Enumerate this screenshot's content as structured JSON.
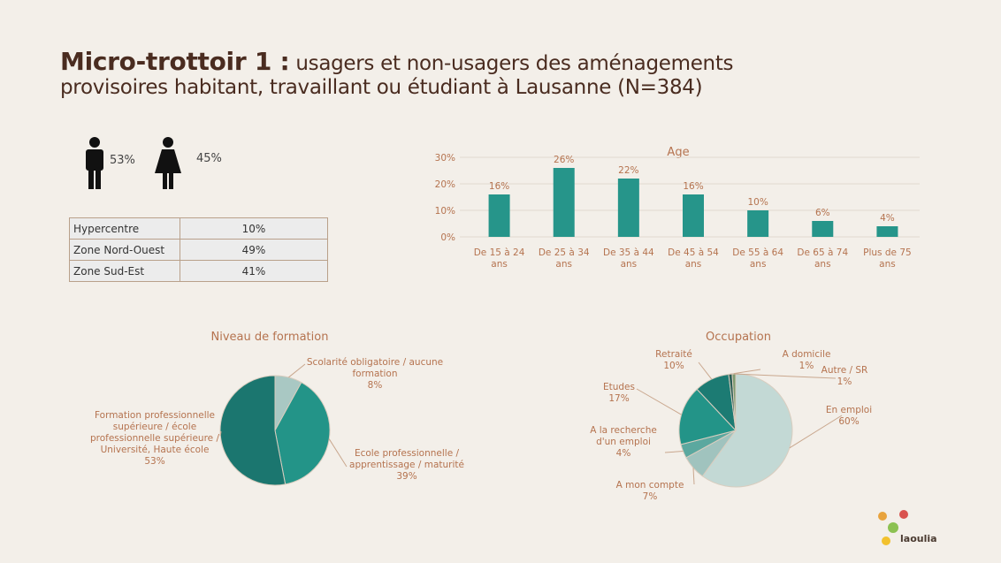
{
  "header": {
    "title_bold": "Micro-trottoir 1 :",
    "title_line1": "usagers et non-usagers des aménagements",
    "title_line2": "provisoires habitant, travaillant ou étudiant à Lausanne (N=384)"
  },
  "gender": {
    "men": "53%",
    "women": "45%"
  },
  "table": {
    "rows": [
      [
        "Hypercentre",
        "10%"
      ],
      [
        "Zone Nord-Ouest",
        "49%"
      ],
      [
        "Zone Sud-Est",
        "41%"
      ]
    ]
  },
  "chart_data": [
    {
      "type": "bar",
      "title": "Age",
      "categories": [
        "De 15 à 24 ans",
        "De 25 à 34 ans",
        "De 35 à 44 ans",
        "De 45 à 54 ans",
        "De 55 à 64 ans",
        "De 65 à 74 ans",
        "Plus de 75 ans"
      ],
      "values": [
        16,
        26,
        22,
        16,
        10,
        6,
        4
      ],
      "value_labels": [
        "16%",
        "26%",
        "22%",
        "16%",
        "10%",
        "6%",
        "4%"
      ],
      "color": "#26958a",
      "ylim": [
        0,
        30
      ],
      "yticks": [
        {
          "value": 0,
          "label": "0%"
        },
        {
          "value": 10,
          "label": "10%"
        },
        {
          "value": 20,
          "label": "20%"
        },
        {
          "value": 30,
          "label": "30%"
        }
      ],
      "grid": true
    },
    {
      "type": "pie",
      "title": "Niveau de formation",
      "categories": [
        "Scolarité obligatoire / aucune formation",
        "Ecole professionnelle / apprentissage / maturité",
        "Formation professionnelle supérieure / école professionnelle supérieure / Université, Haute école"
      ],
      "values": [
        8,
        39,
        53
      ],
      "value_labels": [
        "8%",
        "39%",
        "53%"
      ],
      "colors": [
        "#a9c8c3",
        "#239488",
        "#1b766f"
      ]
    },
    {
      "type": "pie",
      "title": "Occupation",
      "categories": [
        "En emploi",
        "A mon compte",
        "A la recherche d'un emploi",
        "Etudes",
        "Retraité",
        "A domicile",
        "Autre / SR"
      ],
      "values": [
        60,
        7,
        4,
        17,
        10,
        1,
        1
      ],
      "value_labels": [
        "60%",
        "7%",
        "4%",
        "17%",
        "10%",
        "1%",
        "1%"
      ],
      "colors": [
        "#c3d9d5",
        "#a0c3be",
        "#5ba89f",
        "#239488",
        "#1c7b73",
        "#2a5d55",
        "#7d9a70"
      ]
    }
  ],
  "logo": "laoulia"
}
